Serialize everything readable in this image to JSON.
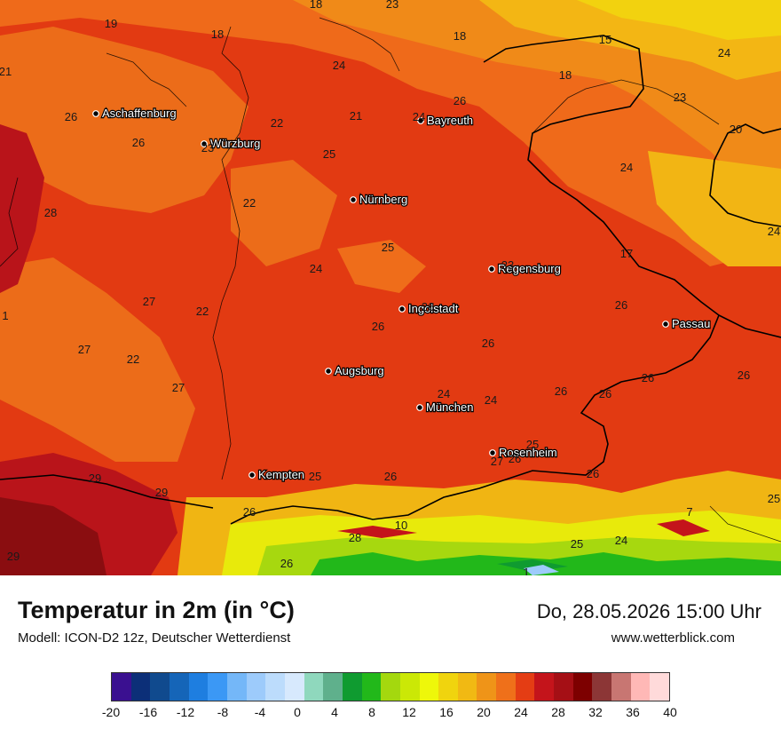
{
  "map": {
    "cities": [
      {
        "name": "Aschaffenburg"
      },
      {
        "name": "Würzburg"
      },
      {
        "name": "Bayreuth"
      },
      {
        "name": "Nürnberg"
      },
      {
        "name": "Regensburg"
      },
      {
        "name": "Ingolstadt"
      },
      {
        "name": "Passau"
      },
      {
        "name": "Augsburg"
      },
      {
        "name": "München"
      },
      {
        "name": "Rosenheim"
      },
      {
        "name": "Kempten"
      }
    ],
    "values": [
      "18",
      "23",
      "19",
      "18",
      "18",
      "15",
      "21",
      "24",
      "24",
      "26",
      "21",
      "22",
      "24",
      "18",
      "23",
      "20",
      "26",
      "26",
      "23",
      "25",
      "24",
      "28",
      "22",
      "24",
      "25",
      "17",
      "24",
      "23",
      "1",
      "27",
      "22",
      "26",
      "26",
      "26",
      "26",
      "27",
      "22",
      "27",
      "26",
      "24",
      "24",
      "26",
      "26",
      "26",
      "27",
      "26",
      "29",
      "29",
      "25",
      "26",
      "26",
      "25",
      "26",
      "7",
      "25",
      "28",
      "10",
      "25",
      "24",
      "29",
      "26",
      "1"
    ]
  },
  "header": {
    "title": "Temperatur in 2m (in °C)",
    "subtitle": "Modell: ICON-D2 12z, Deutscher Wetterdienst",
    "datetime": "Do, 28.05.2026 15:00 Uhr",
    "website": "www.wetterblick.com"
  },
  "legend": {
    "colors": [
      "#3a1090",
      "#0c2f78",
      "#104a8e",
      "#1565b8",
      "#1e7ee0",
      "#3b98f5",
      "#74b7f8",
      "#9dcbfb",
      "#bcdcfc",
      "#d7e9fd",
      "#8fd8bd",
      "#5fb08c",
      "#0f9b30",
      "#22b81a",
      "#a4d80e",
      "#cbe806",
      "#eef70a",
      "#f0d40e",
      "#f1b913",
      "#ef9418",
      "#ef701a",
      "#e43d14",
      "#c4141b",
      "#a50f15",
      "#7d0000",
      "#8c3636",
      "#c87672",
      "#ffb8b6",
      "#ffdada"
    ],
    "ticks": [
      "-20",
      "-16",
      "-12",
      "-8",
      "-4",
      "0",
      "4",
      "8",
      "12",
      "16",
      "20",
      "24",
      "28",
      "32",
      "36",
      "40"
    ]
  }
}
